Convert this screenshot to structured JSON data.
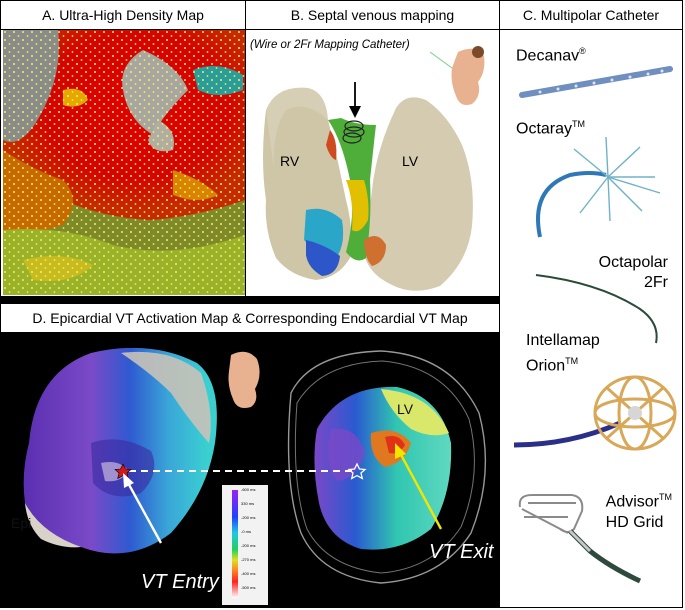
{
  "panelA": {
    "title": "A. Ultra-High Density Map"
  },
  "panelB": {
    "title": "B. Septal venous mapping",
    "note": "(Wire or 2Fr Mapping Catheter)",
    "label_rv": "RV",
    "label_lv": "LV"
  },
  "panelC": {
    "title": "C. Multipolar Catheter",
    "catheters": [
      {
        "name": "Decanav",
        "sup": "®"
      },
      {
        "name": "Octaray",
        "sup": "TM"
      },
      {
        "name_line1": "Octapolar",
        "name_line2": "2Fr"
      },
      {
        "name_line1": "Intellamap",
        "name_line2": "Orion",
        "sup": "TM"
      },
      {
        "name_line1": "Advisor",
        "sup": "TM",
        "name_line2": "HD Grid"
      }
    ]
  },
  "panelD": {
    "title": "D. Epicardial VT Activation Map & Corresponding Endocardial VT Map",
    "label_epi": "Epi",
    "label_lv": "LV",
    "label_entry": "VT Entry",
    "label_exit": "VT Exit",
    "scale_ticks": [
      "-600 ms",
      "330 ms",
      "-200 ms",
      "-0 ms",
      "-200 ms",
      "-270 ms",
      "-400 ms",
      "-500 ms"
    ]
  },
  "colors": {
    "frame": "#000000",
    "panel_d_bg": "#000000",
    "exit_arrow": "#f2e600",
    "entry_arrow": "#ffffff",
    "star_entry": "#d01818"
  }
}
